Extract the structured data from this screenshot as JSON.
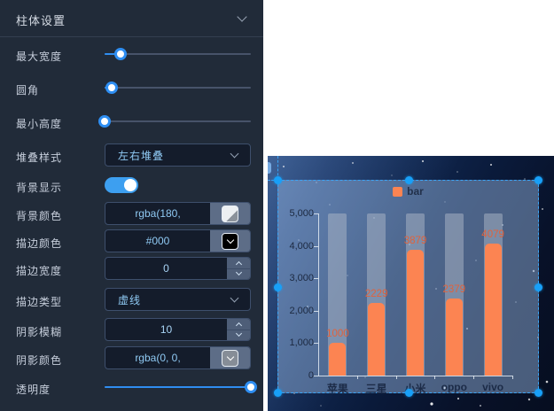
{
  "panel": {
    "title": "柱体设置",
    "rows": [
      {
        "label": "最大宽度",
        "type": "slider",
        "value_pct": 11
      },
      {
        "label": "圆角",
        "type": "slider",
        "value_pct": 5
      },
      {
        "label": "最小高度",
        "type": "slider",
        "value_pct": 0
      },
      {
        "label": "堆叠样式",
        "type": "select",
        "value": "左右堆叠"
      },
      {
        "label": "背景显示",
        "type": "toggle",
        "value": "on"
      },
      {
        "label": "背景颜色",
        "type": "color",
        "value": "rgba(180,"
      },
      {
        "label": "描边颜色",
        "type": "color",
        "value": "#000"
      },
      {
        "label": "描边宽度",
        "type": "number",
        "value": "0"
      },
      {
        "label": "描边类型",
        "type": "select",
        "value": "虚线"
      },
      {
        "label": "阴影模糊",
        "type": "number",
        "value": "10"
      },
      {
        "label": "阴影颜色",
        "type": "color",
        "value": "rgba(0, 0,"
      },
      {
        "label": "透明度",
        "type": "slider",
        "value_pct": 100
      }
    ],
    "accent_color": "#2f8df0"
  },
  "chart_data": {
    "type": "bar",
    "series_name": "bar",
    "categories": [
      "苹果",
      "三星",
      "小米",
      "oppo",
      "vivo"
    ],
    "values": [
      1000,
      2229,
      3879,
      2379,
      4079
    ],
    "ylim": [
      0,
      5000
    ],
    "yticks": [
      0,
      1000,
      2000,
      3000,
      4000,
      5000
    ],
    "ytick_labels": [
      "0",
      "1,000",
      "2,000",
      "3,000",
      "4,000",
      "5,000"
    ],
    "legend_position": "top",
    "grid": false,
    "background_columns": true,
    "bar_color": "#fc8452",
    "value_label_color": "#e0623c",
    "title": "",
    "xlabel": "",
    "ylabel": ""
  }
}
